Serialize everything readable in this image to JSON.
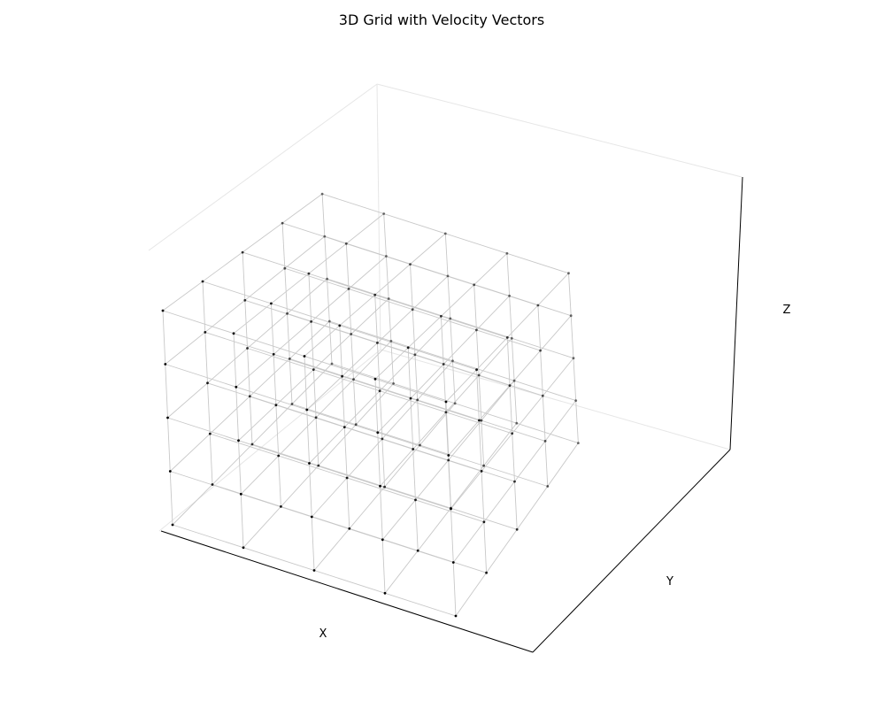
{
  "chart_data": {
    "type": "scatter",
    "title": "3D Grid with Velocity Vectors",
    "xlabel": "X",
    "ylabel": "Y",
    "zlabel": "Z",
    "ticks_visible": false,
    "grid": true,
    "grid_axis_values": [
      0,
      1,
      2,
      3,
      4
    ],
    "point_count": 125,
    "colors": {
      "points": "#000000",
      "grid_lines": "#c8c8c8",
      "axes": "#000000",
      "pane_edges": "#e6e6e6"
    }
  }
}
